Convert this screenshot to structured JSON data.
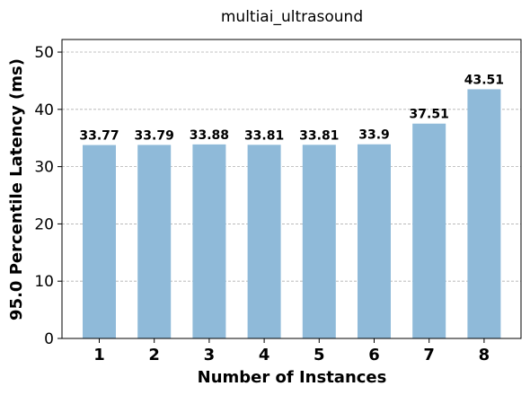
{
  "chart_data": {
    "type": "bar",
    "title": "multiai_ultrasound",
    "xlabel": "Number of Instances",
    "ylabel": "95.0 Percentile Latency (ms)",
    "categories": [
      "1",
      "2",
      "3",
      "4",
      "5",
      "6",
      "7",
      "8"
    ],
    "values": [
      33.77,
      33.79,
      33.88,
      33.81,
      33.81,
      33.9,
      37.51,
      43.51
    ],
    "data_labels": [
      "33.77",
      "33.79",
      "33.88",
      "33.81",
      "33.81",
      "33.9",
      "37.51",
      "43.51"
    ],
    "ylim": [
      0,
      52.2
    ],
    "yticks": [
      0,
      10,
      20,
      30,
      40,
      50
    ],
    "ytick_labels": [
      "0",
      "10",
      "20",
      "30",
      "40",
      "50"
    ],
    "grid": "horizontal dashed",
    "bar_color": "#8fbad9"
  }
}
